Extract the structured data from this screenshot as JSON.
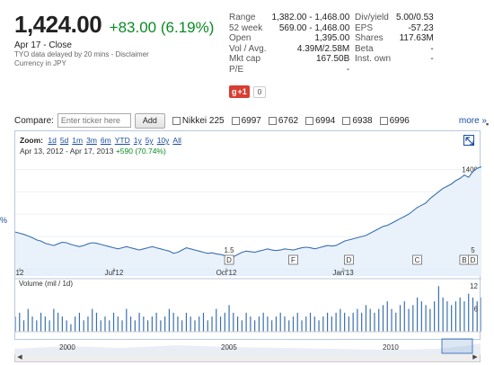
{
  "quote": {
    "price": "1,424.00",
    "change": "+83.00 (6.19%)",
    "close_date": "Apr 17 - Close",
    "disclaimer_line1": "TYO data delayed by 20 mins - Disclaimer",
    "disclaimer_line2": "Currency in JPY"
  },
  "stats_left": [
    {
      "key": "Range",
      "value": "1,382.00 - 1,468.00"
    },
    {
      "key": "52 week",
      "value": "569.00 - 1,468.00"
    },
    {
      "key": "Open",
      "value": "1,395.00"
    },
    {
      "key": "Vol / Avg.",
      "value": "4.39M/2.58M"
    },
    {
      "key": "Mkt cap",
      "value": "167.50B"
    },
    {
      "key": "P/E",
      "value": "-"
    }
  ],
  "stats_right": [
    {
      "key": "Div/yield",
      "value": "5.00/0.53"
    },
    {
      "key": "EPS",
      "value": "-57.23"
    },
    {
      "key": "Shares",
      "value": "117.63M"
    },
    {
      "key": "Beta",
      "value": "-"
    },
    {
      "key": "Inst. own",
      "value": "-"
    }
  ],
  "gplus": {
    "label": "+1",
    "count": "0"
  },
  "compare": {
    "label": "Compare:",
    "placeholder": "Enter ticker here",
    "add_label": "Add",
    "tickers": [
      "Nikkei 225",
      "6997",
      "6762",
      "6994",
      "6938",
      "6996"
    ],
    "more_label": "more »"
  },
  "chart": {
    "zoom_label": "Zoom:",
    "zoom_options": [
      "1d",
      "5d",
      "1m",
      "3m",
      "6m",
      "YTD",
      "1y",
      "5y",
      "10y",
      "All"
    ],
    "date_range": "Apr 13, 2012  -  Apr 17, 2013",
    "range_gain": "+590 (70.74%)",
    "volume_label": "Volume (mil / 1d)",
    "left_edge_label": "%"
  },
  "chart_data": {
    "type": "area",
    "x_ticks": [
      "12",
      "Jul'12",
      "Oct'12",
      "Jan'13"
    ],
    "y_ticks": [
      600,
      800,
      1000,
      1200,
      1400
    ],
    "ylim": [
      520,
      1500
    ],
    "volume_ticks": [
      6,
      12
    ],
    "volume_ylim": [
      0,
      13
    ],
    "overview_ticks": [
      "2000",
      "2005",
      "2010"
    ],
    "markers": [
      {
        "label": "D",
        "index": 50,
        "note": "1.5"
      },
      {
        "label": "F",
        "index": 65
      },
      {
        "label": "D",
        "index": 78
      },
      {
        "label": "C",
        "index": 94
      },
      {
        "label": "B",
        "index": 105
      },
      {
        "label": "D",
        "index": 107,
        "note": "5"
      }
    ],
    "price_series": [
      840,
      830,
      820,
      805,
      790,
      770,
      760,
      740,
      730,
      720,
      735,
      750,
      745,
      730,
      720,
      710,
      720,
      735,
      745,
      740,
      730,
      720,
      710,
      700,
      690,
      700,
      710,
      700,
      690,
      680,
      690,
      700,
      710,
      700,
      690,
      680,
      670,
      650,
      660,
      680,
      700,
      690,
      680,
      670,
      660,
      650,
      655,
      645,
      640,
      630,
      610,
      620,
      640,
      660,
      670,
      665,
      660,
      670,
      680,
      690,
      680,
      675,
      680,
      690,
      685,
      680,
      690,
      700,
      705,
      700,
      690,
      700,
      710,
      720,
      715,
      720,
      740,
      760,
      770,
      780,
      790,
      800,
      810,
      830,
      850,
      870,
      890,
      900,
      920,
      940,
      960,
      980,
      1000,
      1030,
      1060,
      1080,
      1100,
      1140,
      1170,
      1200,
      1230,
      1250,
      1270,
      1300,
      1320,
      1350,
      1330,
      1380,
      1410,
      1424
    ],
    "volume_series": [
      4,
      5,
      3,
      6,
      4,
      3,
      5,
      4,
      3,
      6,
      5,
      4,
      3,
      2,
      4,
      5,
      3,
      4,
      6,
      5,
      3,
      4,
      3,
      5,
      4,
      3,
      6,
      4,
      3,
      5,
      4,
      3,
      4,
      5,
      3,
      4,
      6,
      5,
      4,
      3,
      5,
      4,
      3,
      4,
      5,
      3,
      4,
      6,
      4,
      5,
      7,
      5,
      4,
      3,
      5,
      4,
      3,
      4,
      5,
      4,
      3,
      4,
      5,
      4,
      3,
      4,
      5,
      3,
      4,
      5,
      4,
      3,
      4,
      5,
      4,
      5,
      6,
      5,
      4,
      5,
      6,
      5,
      7,
      6,
      5,
      6,
      7,
      8,
      6,
      5,
      7,
      8,
      6,
      7,
      9,
      8,
      7,
      6,
      8,
      12,
      9,
      8,
      7,
      8,
      9,
      8,
      10,
      9,
      8,
      9
    ]
  }
}
